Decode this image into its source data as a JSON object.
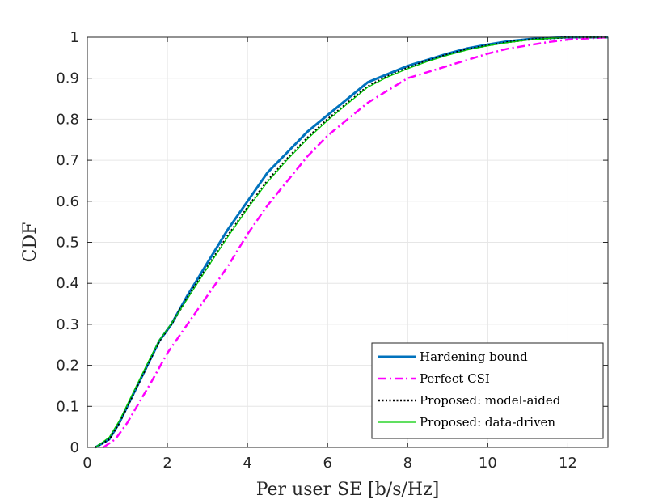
{
  "chart_data": {
    "type": "line",
    "title": "",
    "xlabel": "Per user SE [b/s/Hz]",
    "ylabel": "CDF",
    "xlim": [
      0,
      13
    ],
    "ylim": [
      0,
      1
    ],
    "xticks": [
      0,
      2,
      4,
      6,
      8,
      10,
      12
    ],
    "yticks": [
      0,
      0.1,
      0.2,
      0.3,
      0.4,
      0.5,
      0.6,
      0.7,
      0.8,
      0.9,
      1
    ],
    "xtick_labels": [
      "0",
      "2",
      "4",
      "6",
      "8",
      "10",
      "12"
    ],
    "ytick_labels": [
      "0",
      "0.1",
      "0.2",
      "0.3",
      "0.4",
      "0.5",
      "0.6",
      "0.7",
      "0.8",
      "0.9",
      "1"
    ],
    "grid": true,
    "legend_position": "bottom-right",
    "series": [
      {
        "name": "Hardening bound",
        "color": "#0072BD",
        "style": "solid-thick",
        "x": [
          0.2,
          0.55,
          0.8,
          1.0,
          1.2,
          1.5,
          1.8,
          2.1,
          2.5,
          3.0,
          3.5,
          4.0,
          4.5,
          5.0,
          5.5,
          6.0,
          6.5,
          7.0,
          7.5,
          8.0,
          8.5,
          9.0,
          9.5,
          10.0,
          10.5,
          11.0,
          11.5,
          12.0,
          12.5,
          13.0
        ],
        "y": [
          0.0,
          0.02,
          0.06,
          0.1,
          0.14,
          0.2,
          0.26,
          0.3,
          0.37,
          0.45,
          0.53,
          0.6,
          0.67,
          0.72,
          0.77,
          0.81,
          0.85,
          0.89,
          0.91,
          0.93,
          0.945,
          0.96,
          0.973,
          0.982,
          0.99,
          0.995,
          0.998,
          1.0,
          1.0,
          1.0
        ]
      },
      {
        "name": "Perfect CSI",
        "color": "#FF00FF",
        "style": "dashdot",
        "x": [
          0.4,
          0.7,
          1.0,
          1.3,
          1.6,
          2.0,
          2.5,
          3.0,
          3.5,
          4.0,
          4.5,
          5.0,
          5.5,
          6.0,
          6.5,
          7.0,
          7.5,
          8.0,
          8.5,
          9.0,
          9.5,
          10.0,
          10.5,
          11.0,
          11.5,
          12.0,
          12.5,
          13.0
        ],
        "y": [
          0.0,
          0.02,
          0.06,
          0.11,
          0.16,
          0.23,
          0.3,
          0.37,
          0.44,
          0.52,
          0.59,
          0.65,
          0.71,
          0.76,
          0.8,
          0.84,
          0.87,
          0.9,
          0.915,
          0.93,
          0.945,
          0.96,
          0.972,
          0.98,
          0.988,
          0.994,
          0.997,
          1.0
        ]
      },
      {
        "name": "Proposed: model-aided",
        "color": "#000000",
        "style": "dotted",
        "x": [
          0.2,
          0.55,
          0.8,
          1.0,
          1.2,
          1.5,
          1.8,
          2.1,
          2.5,
          3.0,
          3.5,
          4.0,
          4.5,
          5.0,
          5.5,
          6.0,
          6.5,
          7.0,
          7.5,
          8.0,
          8.5,
          9.0,
          9.5,
          10.0,
          10.5,
          11.0,
          11.5,
          12.0,
          12.5,
          13.0
        ],
        "y": [
          0.0,
          0.02,
          0.06,
          0.1,
          0.14,
          0.2,
          0.26,
          0.3,
          0.365,
          0.44,
          0.515,
          0.585,
          0.65,
          0.705,
          0.755,
          0.8,
          0.84,
          0.88,
          0.905,
          0.925,
          0.943,
          0.958,
          0.971,
          0.98,
          0.988,
          0.994,
          0.997,
          1.0,
          1.0,
          1.0
        ]
      },
      {
        "name": "Proposed: data-driven",
        "color": "#00CC00",
        "style": "solid-thin",
        "x": [
          0.2,
          0.55,
          0.8,
          1.0,
          1.2,
          1.5,
          1.8,
          2.1,
          2.5,
          3.0,
          3.5,
          4.0,
          4.5,
          5.0,
          5.5,
          6.0,
          6.5,
          7.0,
          7.5,
          8.0,
          8.5,
          9.0,
          9.5,
          10.0,
          10.5,
          11.0,
          11.5,
          12.0,
          12.5,
          13.0
        ],
        "y": [
          0.0,
          0.025,
          0.065,
          0.105,
          0.145,
          0.205,
          0.262,
          0.302,
          0.362,
          0.438,
          0.512,
          0.582,
          0.647,
          0.702,
          0.752,
          0.797,
          0.838,
          0.878,
          0.903,
          0.923,
          0.941,
          0.956,
          0.969,
          0.979,
          0.987,
          0.993,
          0.997,
          1.0,
          1.0,
          1.0
        ]
      }
    ]
  }
}
